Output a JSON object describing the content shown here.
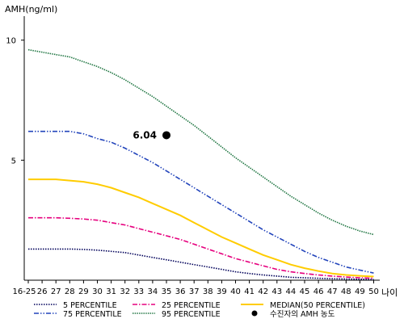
{
  "chart_data": {
    "type": "line",
    "ylabel": "AMH(ng/ml)",
    "xlabel": "나이",
    "ylim": [
      0,
      11
    ],
    "y_ticks": [
      5,
      10
    ],
    "x_tick_labels": [
      "16-25",
      "26",
      "27",
      "28",
      "29",
      "30",
      "31",
      "32",
      "33",
      "34",
      "35",
      "36",
      "37",
      "38",
      "39",
      "40",
      "41",
      "42",
      "43",
      "44",
      "45",
      "46",
      "47",
      "48",
      "49",
      "50"
    ],
    "x": [
      "16-25",
      "26",
      "27",
      "28",
      "29",
      "30",
      "31",
      "32",
      "33",
      "34",
      "35",
      "36",
      "37",
      "38",
      "39",
      "40",
      "41",
      "42",
      "43",
      "44",
      "45",
      "46",
      "47",
      "48",
      "49",
      "50"
    ],
    "series": [
      {
        "name": "5 PERCENTILE",
        "color": "#00005a",
        "dash": "dotted",
        "values": [
          1.3,
          1.3,
          1.3,
          1.3,
          1.28,
          1.25,
          1.2,
          1.15,
          1.05,
          0.95,
          0.85,
          0.75,
          0.65,
          0.55,
          0.45,
          0.35,
          0.28,
          0.22,
          0.17,
          0.12,
          0.1,
          0.08,
          0.06,
          0.05,
          0.04,
          0.03
        ]
      },
      {
        "name": "25 PERCENTILE",
        "color": "#e6007e",
        "dash": "dashdot",
        "values": [
          2.6,
          2.6,
          2.6,
          2.58,
          2.55,
          2.5,
          2.4,
          2.3,
          2.15,
          2.0,
          1.85,
          1.7,
          1.5,
          1.3,
          1.1,
          0.9,
          0.75,
          0.6,
          0.45,
          0.35,
          0.28,
          0.22,
          0.17,
          0.13,
          0.1,
          0.08
        ]
      },
      {
        "name": "MEDIAN(50 PERCENTILE)",
        "color": "#ffcc00",
        "dash": "solid",
        "values": [
          4.2,
          4.2,
          4.2,
          4.15,
          4.1,
          4.0,
          3.85,
          3.65,
          3.45,
          3.2,
          2.95,
          2.7,
          2.4,
          2.1,
          1.8,
          1.55,
          1.3,
          1.05,
          0.85,
          0.65,
          0.5,
          0.38,
          0.28,
          0.22,
          0.18,
          0.15
        ]
      },
      {
        "name": "75 PERCENTILE",
        "color": "#2244bb",
        "dash": "dashdotdot",
        "values": [
          6.2,
          6.2,
          6.2,
          6.2,
          6.1,
          5.9,
          5.75,
          5.5,
          5.2,
          4.9,
          4.55,
          4.2,
          3.85,
          3.5,
          3.15,
          2.8,
          2.45,
          2.1,
          1.8,
          1.5,
          1.2,
          0.95,
          0.75,
          0.55,
          0.42,
          0.3
        ]
      },
      {
        "name": "95 PERCENTILE",
        "color": "#227744",
        "dash": "densedot",
        "values": [
          9.6,
          9.5,
          9.4,
          9.3,
          9.1,
          8.9,
          8.65,
          8.35,
          8.0,
          7.65,
          7.25,
          6.85,
          6.45,
          6.0,
          5.55,
          5.1,
          4.7,
          4.3,
          3.9,
          3.5,
          3.15,
          2.8,
          2.5,
          2.25,
          2.05,
          1.9
        ]
      }
    ],
    "marker": {
      "name": "수진자의 AMH 농도",
      "x": "35",
      "y": 6.04,
      "label": "6.04",
      "color": "#000000"
    },
    "legend_position": "bottom",
    "grid": false
  }
}
